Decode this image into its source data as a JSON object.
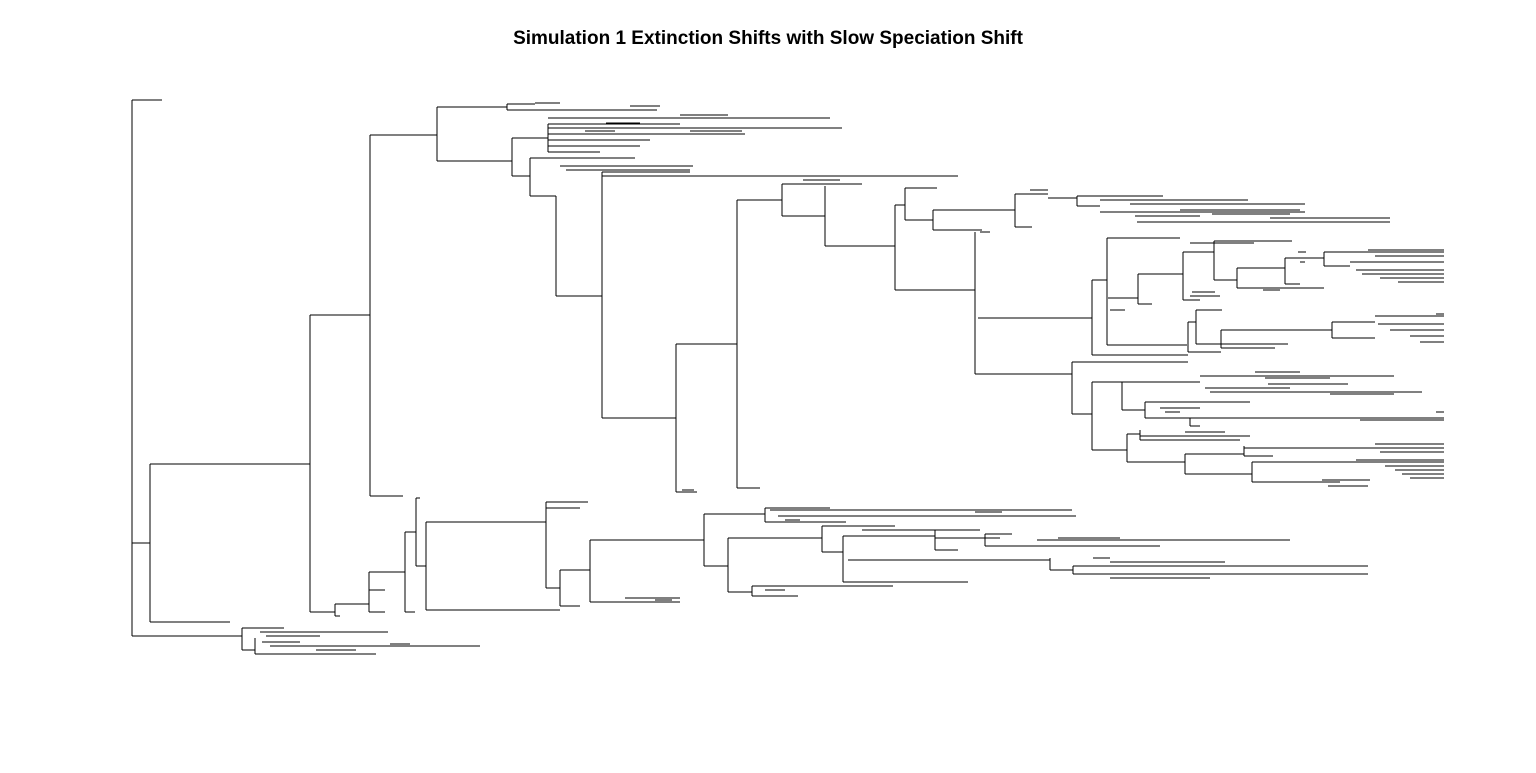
{
  "plot": {
    "title": "Simulation 1 Extinction Shifts with Slow Speciation Shift"
  },
  "chart_data": {
    "type": "phylogenetic-tree",
    "title": "Simulation 1 Extinction Shifts with Slow Speciation Shift",
    "orientation": "rightwards",
    "tip_labels_shown": false,
    "axes_shown": false,
    "edge_color": "#000000",
    "background_color": "#ffffff"
  }
}
